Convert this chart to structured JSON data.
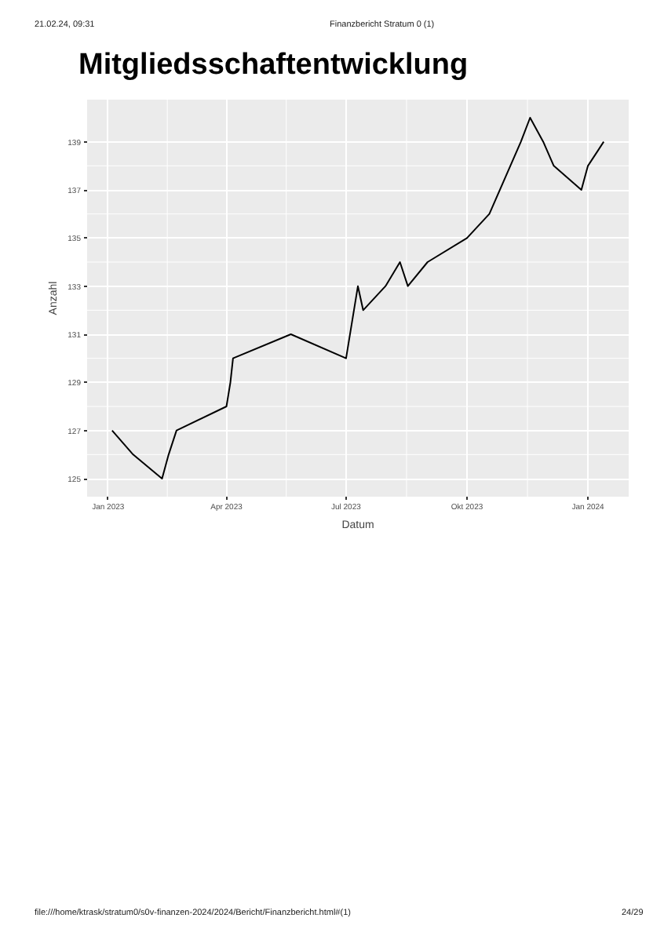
{
  "chart_data": {
    "type": "line",
    "title": "Mitgliedsschaftentwicklung",
    "xlabel": "Datum",
    "ylabel": "Anzahl",
    "annotations": [
      "21.02.24, 09:31",
      "Finanzbericht Stratum 0 (1)",
      "file:///home/ktrask/stratum0/s0v-finanzen-2024/2024/Bericht/Finanzbericht.html#(1)",
      "24/29"
    ],
    "x": [
      "2023-01-04",
      "2023-01-20",
      "2023-02-11",
      "2023-02-16",
      "2023-02-22",
      "2023-04-01",
      "2023-04-04",
      "2023-04-06",
      "2023-05-20",
      "2023-07-01",
      "2023-07-10",
      "2023-07-14",
      "2023-07-31",
      "2023-08-11",
      "2023-08-17",
      "2023-09-01",
      "2023-10-01",
      "2023-10-18",
      "2023-11-11",
      "2023-11-18",
      "2023-11-28",
      "2023-12-06",
      "2023-12-27",
      "2024-01-01",
      "2024-01-13"
    ],
    "series": [
      {
        "color": "#000000",
        "values": [
          127,
          126,
          125,
          126,
          127,
          128,
          129,
          130,
          131,
          130,
          133,
          132,
          133,
          134,
          133,
          134,
          135,
          136,
          139,
          140,
          139,
          138,
          137,
          138,
          139
        ]
      }
    ],
    "xlim": [
      "2022-12-16",
      "2024-02-01"
    ],
    "ylim": [
      124.25,
      140.75
    ],
    "xticks": [
      {
        "value": "2023-01-01",
        "label": "Jan 2023"
      },
      {
        "value": "2023-04-01",
        "label": "Apr 2023"
      },
      {
        "value": "2023-07-01",
        "label": "Jul 2023"
      },
      {
        "value": "2023-10-01",
        "label": "Okt 2023"
      },
      {
        "value": "2024-01-01",
        "label": "Jan 2024"
      }
    ],
    "yticks": [
      125,
      127,
      129,
      131,
      133,
      135,
      137,
      139
    ],
    "grid": true,
    "marker": "none",
    "line_style": "solid"
  }
}
